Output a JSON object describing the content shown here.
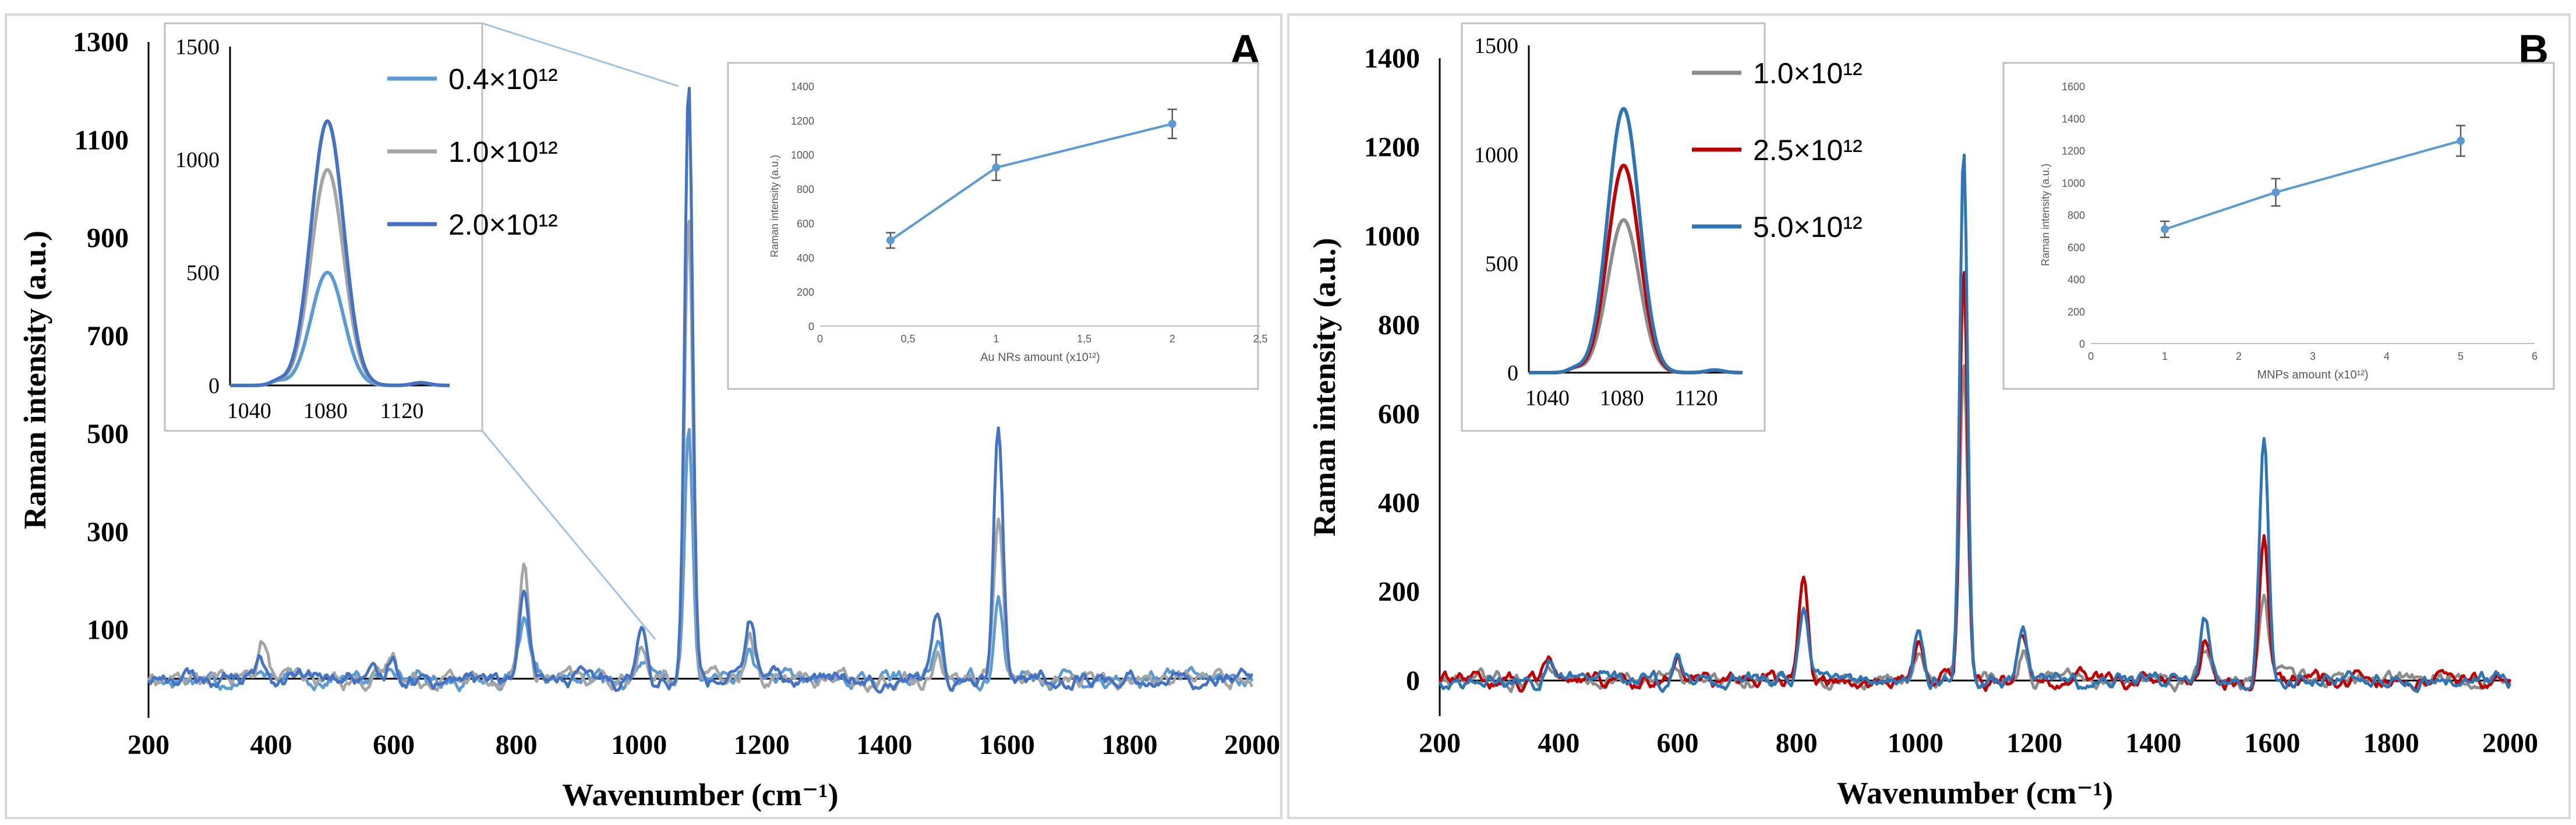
{
  "chart_data": [
    {
      "id": "A",
      "panel_label": "A",
      "type": "line",
      "title": "",
      "xlabel": "Wavenumber  (cm⁻¹)",
      "ylabel": "Raman intensity (a.u.)",
      "xlim": [
        200,
        2000
      ],
      "ylim": [
        -80,
        1300
      ],
      "xticks": [
        200,
        400,
        600,
        800,
        1000,
        1200,
        1400,
        1600,
        1800,
        2000
      ],
      "yticks": [
        100,
        300,
        500,
        700,
        900,
        1100,
        1300
      ],
      "ytick_labels": [
        "100",
        "300",
        "500",
        "700",
        "900",
        "1100",
        "1300"
      ],
      "baseline": 0,
      "series": [
        {
          "name": "0.4×10¹²",
          "color": "#5b9bd5",
          "peaks": [
            [
              385,
              30
            ],
            [
              598,
              40
            ],
            [
              812,
              110
            ],
            [
              1005,
              40
            ],
            [
              1081,
              503
            ],
            [
              1181,
              60
            ],
            [
              1487,
              70
            ],
            [
              1586,
              160
            ]
          ]
        },
        {
          "name": "1.0×10¹²",
          "color": "#a5a5a5",
          "peaks": [
            [
              385,
              80
            ],
            [
              598,
              50
            ],
            [
              812,
              225
            ],
            [
              1005,
              55
            ],
            [
              1081,
              955
            ],
            [
              1181,
              80
            ],
            [
              1487,
              60
            ],
            [
              1586,
              335
            ]
          ]
        },
        {
          "name": "2.0×10¹²",
          "color": "#4472c4",
          "peaks": [
            [
              385,
              35
            ],
            [
              598,
              45
            ],
            [
              812,
              155
            ],
            [
              1005,
              120
            ],
            [
              1081,
              1210
            ],
            [
              1181,
              120
            ],
            [
              1487,
              125
            ],
            [
              1586,
              520
            ]
          ]
        }
      ],
      "legend": "top-left (inside inset)"
    },
    {
      "id": "A-inset-zoom",
      "type": "line",
      "xlim": [
        1030,
        1145
      ],
      "ylim": [
        0,
        1500
      ],
      "xticks": [
        1040,
        1080,
        1120
      ],
      "yticks": [
        0,
        500,
        1000,
        1500
      ],
      "series": [
        {
          "name": "0.4×10¹²",
          "color": "#5b9bd5",
          "peak": [
            1081,
            500
          ]
        },
        {
          "name": "1.0×10¹²",
          "color": "#a5a5a5",
          "peak": [
            1081,
            955
          ]
        },
        {
          "name": "2.0×10¹²",
          "color": "#4472c4",
          "peak": [
            1081,
            1170
          ]
        }
      ]
    },
    {
      "id": "A-inset-trend",
      "type": "line",
      "xlabel": "Au NRs amount (x10¹²)",
      "ylabel": "Raman intensity (a.u.)",
      "xlim": [
        0,
        2.5
      ],
      "ylim": [
        0,
        1400
      ],
      "xticks": [
        0,
        0.5,
        1,
        1.5,
        2,
        2.5
      ],
      "xtick_labels": [
        "0",
        "0,5",
        "1",
        "1,5",
        "2",
        "2,5"
      ],
      "yticks": [
        0,
        200,
        400,
        600,
        800,
        1000,
        1200,
        1400
      ],
      "x": [
        0.4,
        1,
        2
      ],
      "values": [
        500,
        925,
        1180
      ],
      "errors": [
        45,
        75,
        85
      ],
      "color": "#5b9bd5"
    },
    {
      "id": "B",
      "panel_label": "B",
      "type": "line",
      "title": "",
      "xlabel": "Wavenumber  (cm⁻¹)",
      "ylabel": "Raman intensity (a.u.)",
      "xlim": [
        200,
        2000
      ],
      "ylim": [
        -80,
        1400
      ],
      "xticks": [
        200,
        400,
        600,
        800,
        1000,
        1200,
        1400,
        1600,
        1800,
        2000
      ],
      "yticks": [
        0,
        200,
        400,
        600,
        800,
        1000,
        1200,
        1400
      ],
      "ytick_labels": [
        "0",
        "200",
        "400",
        "600",
        "800",
        "1000",
        "1200",
        "1400"
      ],
      "baseline": 0,
      "series": [
        {
          "name": "1.0×10¹²",
          "color": "#8c8c8c",
          "peaks": [
            [
              385,
              40
            ],
            [
              598,
              45
            ],
            [
              812,
              160
            ],
            [
              1005,
              60
            ],
            [
              1081,
              705
            ],
            [
              1181,
              70
            ],
            [
              1487,
              70
            ],
            [
              1586,
              180
            ]
          ]
        },
        {
          "name": "2.5×10¹²",
          "color": "#c00000",
          "peaks": [
            [
              385,
              65
            ],
            [
              598,
              55
            ],
            [
              812,
              230
            ],
            [
              1005,
              90
            ],
            [
              1081,
              940
            ],
            [
              1181,
              100
            ],
            [
              1487,
              90
            ],
            [
              1586,
              340
            ]
          ]
        },
        {
          "name": "5.0×10¹²",
          "color": "#2e75b6",
          "peaks": [
            [
              385,
              45
            ],
            [
              598,
              50
            ],
            [
              812,
              170
            ],
            [
              1005,
              120
            ],
            [
              1081,
              1210
            ],
            [
              1181,
              120
            ],
            [
              1487,
              130
            ],
            [
              1586,
              540
            ]
          ]
        }
      ],
      "legend": "top-left (inside inset)"
    },
    {
      "id": "B-inset-zoom",
      "type": "line",
      "xlim": [
        1030,
        1145
      ],
      "ylim": [
        0,
        1500
      ],
      "xticks": [
        1040,
        1080,
        1120
      ],
      "yticks": [
        0,
        500,
        1000,
        1500
      ],
      "series": [
        {
          "name": "1.0×10¹²",
          "color": "#8c8c8c",
          "peak": [
            1081,
            700
          ]
        },
        {
          "name": "2.5×10¹²",
          "color": "#c00000",
          "peak": [
            1081,
            950
          ]
        },
        {
          "name": "5.0×10¹²",
          "color": "#2e75b6",
          "peak": [
            1081,
            1210
          ]
        }
      ]
    },
    {
      "id": "B-inset-trend",
      "type": "line",
      "xlabel": "MNPs amount (x10¹²)",
      "ylabel": "Raman intensity (a.u.)",
      "xlim": [
        0,
        6
      ],
      "ylim": [
        0,
        1600
      ],
      "xticks": [
        0,
        1,
        2,
        3,
        4,
        5,
        6
      ],
      "xtick_labels": [
        "0",
        "1",
        "2",
        "3",
        "4",
        "5",
        "6"
      ],
      "yticks": [
        0,
        200,
        400,
        600,
        800,
        1000,
        1200,
        1400,
        1600
      ],
      "x": [
        1,
        2.5,
        5
      ],
      "values": [
        710,
        940,
        1260
      ],
      "errors": [
        50,
        85,
        95
      ],
      "color": "#5b9bd5"
    }
  ]
}
